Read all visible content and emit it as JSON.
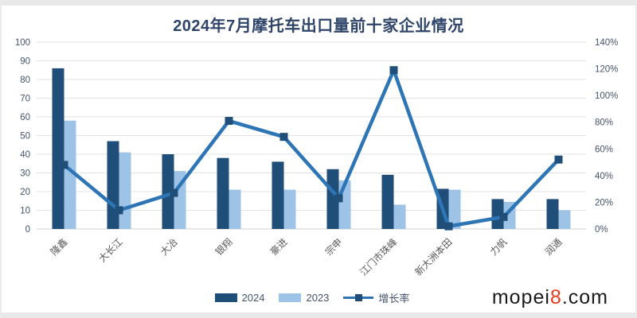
{
  "title": "2024年7月摩托车出口量前十家企业情况",
  "watermark": {
    "prefix": "mopei",
    "digit": "8",
    "suffix": ".com"
  },
  "colors": {
    "bar_2024": "#1f4e79",
    "bar_2023": "#9dc3e6",
    "line": "#2e75b6",
    "marker": "#1f4e79",
    "grid": "#e3e3e3",
    "zero_axis": "#d0d0d0",
    "axis_text": "#44546a",
    "category_text": "#595959",
    "title_text": "#2e4468"
  },
  "chart_data": {
    "type": "bar",
    "title": "2024年7月摩托车出口量前十家企业情况",
    "categories": [
      "隆鑫",
      "大长江",
      "大冶",
      "银翔",
      "豪进",
      "宗申",
      "江门市珠峰",
      "新大洲本田",
      "力帆",
      "润通"
    ],
    "series": [
      {
        "name": "2024",
        "type": "bar",
        "color": "#1f4e79",
        "values": [
          86,
          47,
          40,
          38,
          36,
          32,
          29,
          21.5,
          16,
          16
        ]
      },
      {
        "name": "2023",
        "type": "bar",
        "color": "#9dc3e6",
        "values": [
          58,
          41,
          31,
          21,
          21,
          26,
          13,
          21,
          14.5,
          10
        ]
      },
      {
        "name": "增长率",
        "type": "line",
        "axis": "right",
        "color": "#2e75b6",
        "marker_color": "#1f4e79",
        "values_pct": [
          48,
          14,
          27,
          81,
          69,
          23,
          119,
          2,
          9,
          52
        ]
      }
    ],
    "left_axis": {
      "min": 0,
      "max": 100,
      "step": 10
    },
    "right_axis": {
      "min": 0,
      "max": 140,
      "step": 20,
      "suffix": "%"
    },
    "grid": true,
    "legend_position": "bottom"
  }
}
